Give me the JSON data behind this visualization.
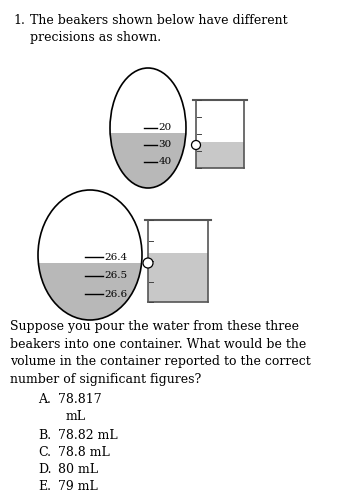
{
  "title_number": "1.",
  "title_text": "The beakers shown below have different\nprecisions as shown.",
  "beaker1_labels": [
    "40",
    "30",
    "20"
  ],
  "beaker2_labels": [
    "26.6",
    "26.5",
    "26.4"
  ],
  "question_text": "Suppose you pour the water from these three\nbeakers into one container. What would be the\nvolume in the container reported to the correct\nnumber of significant figures?",
  "choice_A_line1": "A.   78.817",
  "choice_A_line2": "         mL",
  "choice_B": "B.   78.82 mL",
  "choice_C": "C.   78.8 mL",
  "choice_D": "D.   80 mL",
  "choice_E": "E.   79 mL",
  "bg_color": "#ffffff",
  "text_color": "#000000",
  "gray_fill": "#b8b8b8",
  "beaker_gray": "#c8c8c8",
  "beaker_edge": "#555555"
}
